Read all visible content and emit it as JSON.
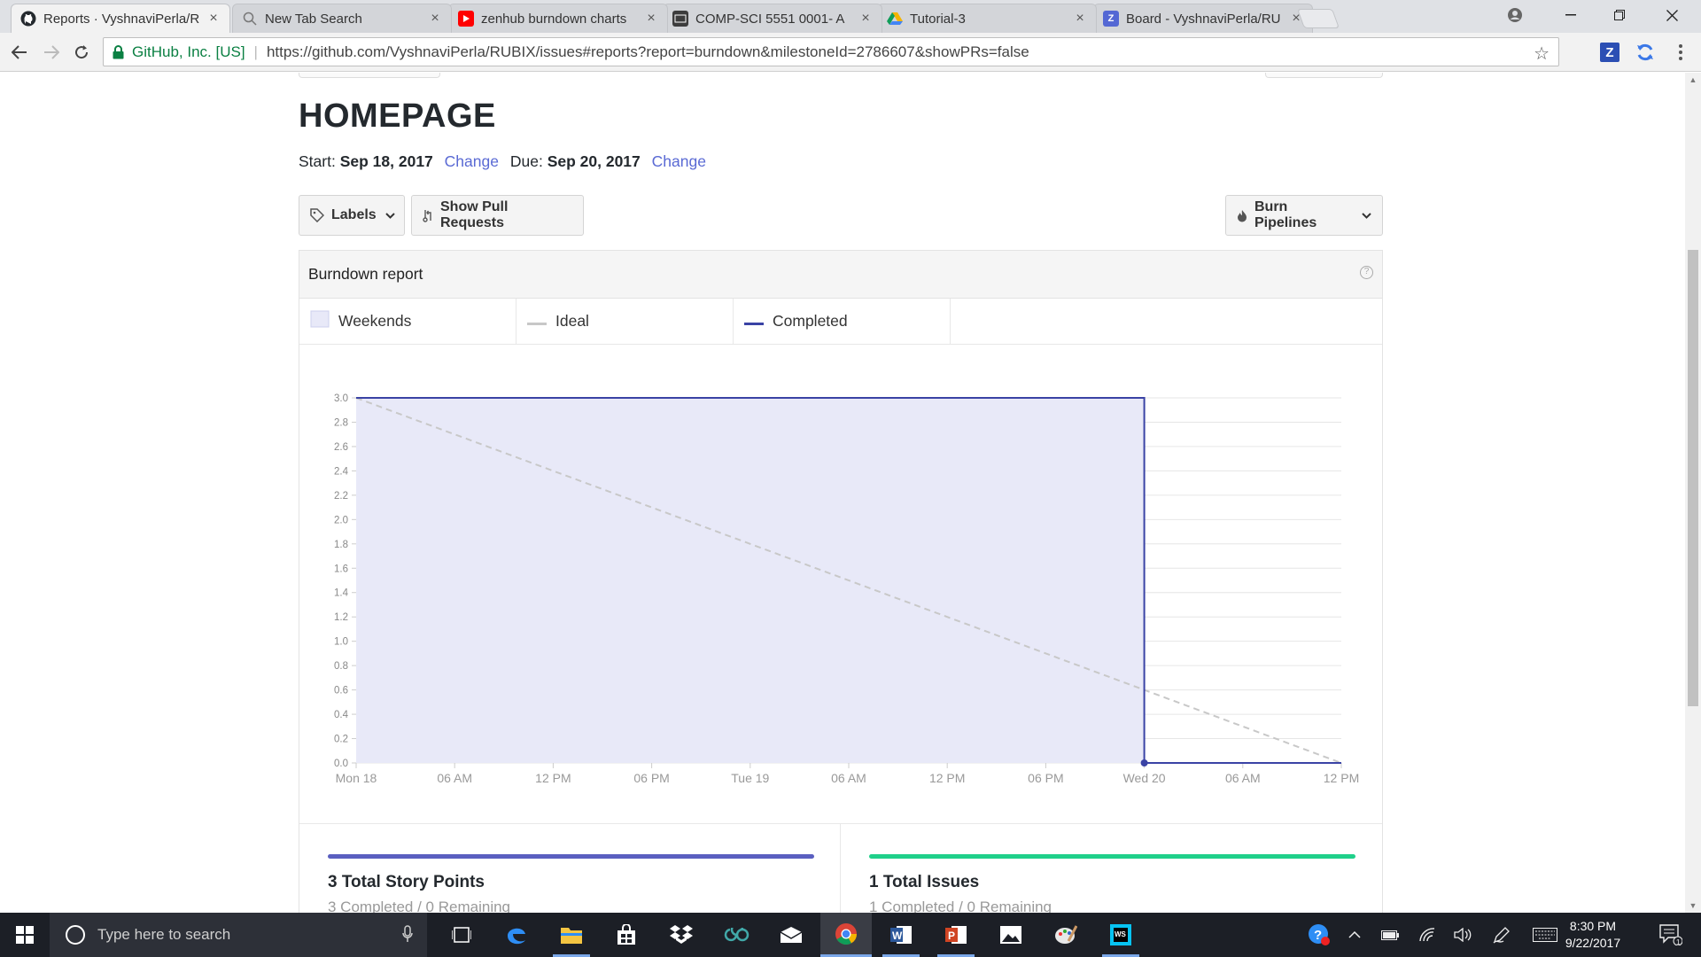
{
  "browser": {
    "tabs": [
      {
        "title": "Reports · VyshnaviPerla/R",
        "fav_color": "#24292e",
        "fav": "github-icon",
        "active": true
      },
      {
        "title": "New Tab Search",
        "fav_color": "#ffffff",
        "fav": "search-icon",
        "active": false
      },
      {
        "title": "zenhub burndown charts",
        "fav_color": "#ff0000",
        "fav": "youtube-icon",
        "active": false
      },
      {
        "title": "COMP-SCI 5551 0001- A",
        "fav_color": "#3d3d3d",
        "fav": "blackboard-icon",
        "active": false
      },
      {
        "title": "Tutorial-3",
        "fav_color": "#4caf50",
        "fav": "drive-icon",
        "active": false
      },
      {
        "title": "Board - VyshnaviPerla/RU",
        "fav_color": "#5468d4",
        "fav": "zenhub-icon",
        "active": false
      }
    ],
    "tab_close_glyph": "×",
    "cert_org": "GitHub, Inc. [US]",
    "url": "https://github.com/VyshnaviPerla/RUBIX/issues#reports?report=burndown&milestoneId=2786607&showPRs=false",
    "ext_z": "Z"
  },
  "page": {
    "milestone_title": "HOMEPAGE",
    "start_label": "Start:",
    "start_date": "Sep 18, 2017",
    "due_label": "Due:",
    "due_date": "Sep 20, 2017",
    "change_label": "Change",
    "labels_button": "Labels",
    "show_prs_button": "Show Pull Requests",
    "burn_pipelines_button": "Burn Pipelines",
    "report_title": "Burndown report",
    "help_glyph": "?",
    "legend": [
      {
        "label": "Weekends",
        "kind": "box",
        "color": "#e8e9f8"
      },
      {
        "label": "Ideal",
        "kind": "line",
        "color": "#c8c8c8"
      },
      {
        "label": "Completed",
        "kind": "line",
        "color": "#3a43a5"
      }
    ],
    "stats": [
      {
        "label": "3 Total Story Points",
        "sub": "3 Completed / 0 Remaining",
        "color": "#5a5fc0"
      },
      {
        "label": "1 Total Issues",
        "sub": "1 Completed / 0 Remaining",
        "color": "#1fd08a"
      }
    ]
  },
  "chart_data": {
    "type": "line",
    "title": "Burndown report",
    "x_labels": [
      "Mon 18",
      "06 AM",
      "12 PM",
      "06 PM",
      "Tue 19",
      "06 AM",
      "12 PM",
      "06 PM",
      "Wed 20",
      "06 AM",
      "12 PM"
    ],
    "x_range_hours": [
      0,
      60
    ],
    "y_ticks": [
      "0.0",
      "0.2",
      "0.4",
      "0.6",
      "0.8",
      "1.0",
      "1.2",
      "1.4",
      "1.6",
      "1.8",
      "2.0",
      "2.2",
      "2.4",
      "2.6",
      "2.8",
      "3.0"
    ],
    "ylim": [
      0,
      3.0
    ],
    "series": [
      {
        "name": "Ideal",
        "style": "dashed",
        "color": "#c8c8c8",
        "points": [
          [
            0,
            3.0
          ],
          [
            60,
            0.0
          ]
        ]
      },
      {
        "name": "Completed",
        "style": "solid",
        "color": "#3a43a5",
        "fill": "#e8e9f8",
        "points": [
          [
            0,
            3.0
          ],
          [
            48,
            3.0
          ],
          [
            48,
            0.0
          ],
          [
            60,
            0.0
          ]
        ]
      }
    ],
    "grid": true
  },
  "taskbar": {
    "search_placeholder": "Type here to search",
    "clock_time": "8:30 PM",
    "clock_date": "9/22/2017",
    "notif_count": "1"
  }
}
